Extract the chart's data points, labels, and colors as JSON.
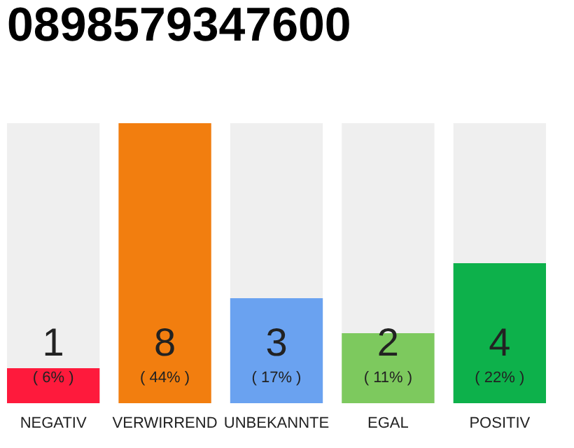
{
  "chart_data": {
    "type": "bar",
    "title": "0898579347600",
    "categories": [
      "NEGATIV",
      "VERWIRREND",
      "UNBEKANNTE",
      "EGAL",
      "POSITIV"
    ],
    "values": [
      1,
      8,
      3,
      2,
      4
    ],
    "colors": [
      "#fe1a3c",
      "#f27e0f",
      "#6aa2f0",
      "#7dc95e",
      "#0db14b"
    ],
    "ylim": [
      0,
      8
    ],
    "tick_labels": "x",
    "data_labels": true,
    "bands": [
      {
        "axis": "y",
        "from": 0,
        "to": 8,
        "color": "#efefef"
      }
    ],
    "annotations": [
      "( 6% )",
      "( 44% )",
      "( 17% )",
      "( 11% )",
      "( 22% )"
    ]
  }
}
